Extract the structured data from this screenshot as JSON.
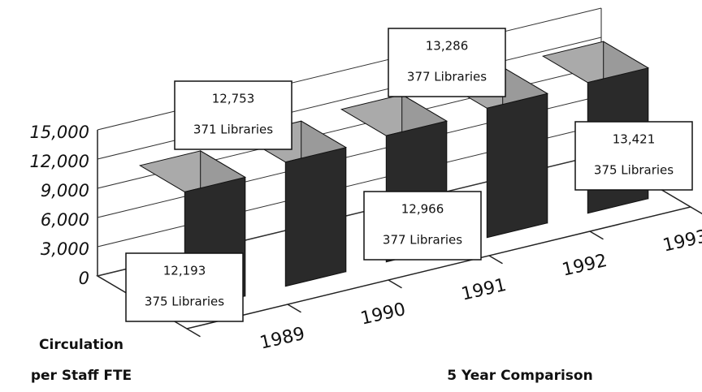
{
  "chart_data": {
    "type": "bar3d",
    "title": "5 Year Comparison",
    "ylabel": [
      "Circulation",
      "per Staff FTE"
    ],
    "categories": [
      "1989",
      "1990",
      "1991",
      "1992",
      "1993"
    ],
    "values": [
      12193,
      12753,
      12966,
      13286,
      13421
    ],
    "value_labels": [
      "12,193",
      "12,753",
      "12,966",
      "13,286",
      "13,421"
    ],
    "annotations": [
      "375 Libraries",
      "371 Libraries",
      "377 Libraries",
      "377 Libraries",
      "375 Libraries"
    ],
    "ylim": [
      0,
      15000
    ],
    "yticks": [
      0,
      {
        "value": 3000,
        "label": "3,000"
      },
      {
        "value": 6000,
        "label": "6,000"
      },
      {
        "value": 9000,
        "label": "9,000"
      },
      {
        "value": 12000,
        "label": "12,000"
      },
      {
        "value": 15000,
        "label": "15,000"
      }
    ],
    "grid": true
  }
}
